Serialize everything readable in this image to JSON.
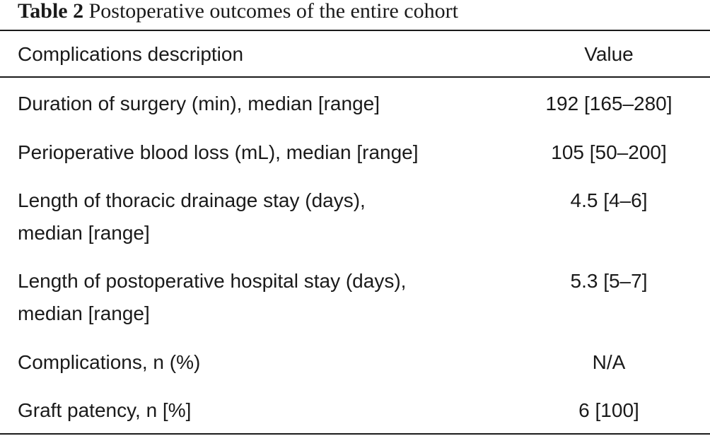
{
  "table": {
    "caption_label": "Table 2",
    "caption_text": "Postoperative outcomes of the entire cohort",
    "headers": {
      "description": "Complications description",
      "value": "Value"
    },
    "rows": [
      {
        "description_line1": "Duration of surgery (min), median [range]",
        "description_line2": "",
        "value": "192 [165–280]"
      },
      {
        "description_line1": "Perioperative blood loss (mL), median [range]",
        "description_line2": "",
        "value": "105 [50–200]"
      },
      {
        "description_line1": "Length of thoracic drainage stay (days),",
        "description_line2": "median [range]",
        "value": "4.5 [4–6]"
      },
      {
        "description_line1": "Length of postoperative hospital stay (days),",
        "description_line2": "median [range]",
        "value": "5.3 [5–7]"
      },
      {
        "description_line1": "Complications, n (%)",
        "description_line2": "",
        "value": "N/A"
      },
      {
        "description_line1": "Graft patency, n [%]",
        "description_line2": "",
        "value": "6 [100]"
      }
    ]
  }
}
